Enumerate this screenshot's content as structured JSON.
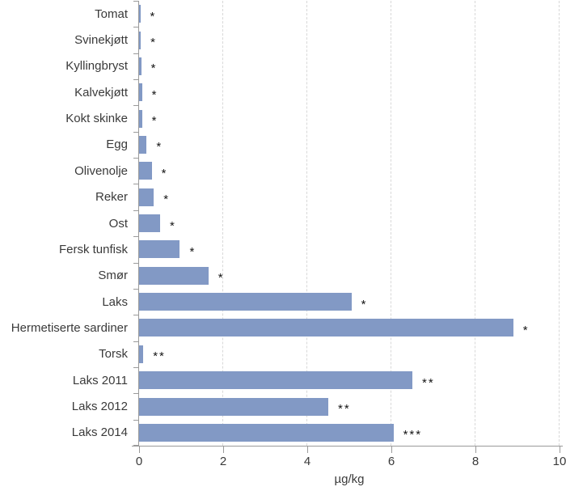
{
  "chart_data": {
    "type": "bar",
    "orientation": "horizontal",
    "title": "",
    "xlabel": "µg/kg",
    "xlim": [
      0,
      10
    ],
    "xticks": [
      0,
      2,
      4,
      6,
      8,
      10
    ],
    "grid": "vertical dashed gridlines at ticks 2,4,6,8,10",
    "legend": "none",
    "categories": [
      "Tomat",
      "Svinekjøtt",
      "Kyllingbryst",
      "Kalvekjøtt",
      "Kokt skinke",
      "Egg",
      "Olivenolje",
      "Reker",
      "Ost",
      "Fersk tunfisk",
      "Smør",
      "Laks",
      "Hermetiserte sardiner",
      "Torsk",
      "Laks 2011",
      "Laks 2012",
      "Laks 2014"
    ],
    "values": [
      0.03,
      0.04,
      0.05,
      0.07,
      0.07,
      0.18,
      0.3,
      0.35,
      0.5,
      0.97,
      1.65,
      5.05,
      8.9,
      0.1,
      6.5,
      4.5,
      6.05
    ],
    "annotations": [
      "*",
      "*",
      "*",
      "*",
      "*",
      "*",
      "*",
      "*",
      "*",
      "*",
      "*",
      "*",
      "*",
      "**",
      "**",
      "**",
      "***"
    ],
    "colors": {
      "bar": "#8299c5",
      "axis": "#9a9a9a",
      "gridline": "#d8d8d8",
      "text": "#3a3a3a",
      "annotation": "#141414"
    }
  }
}
